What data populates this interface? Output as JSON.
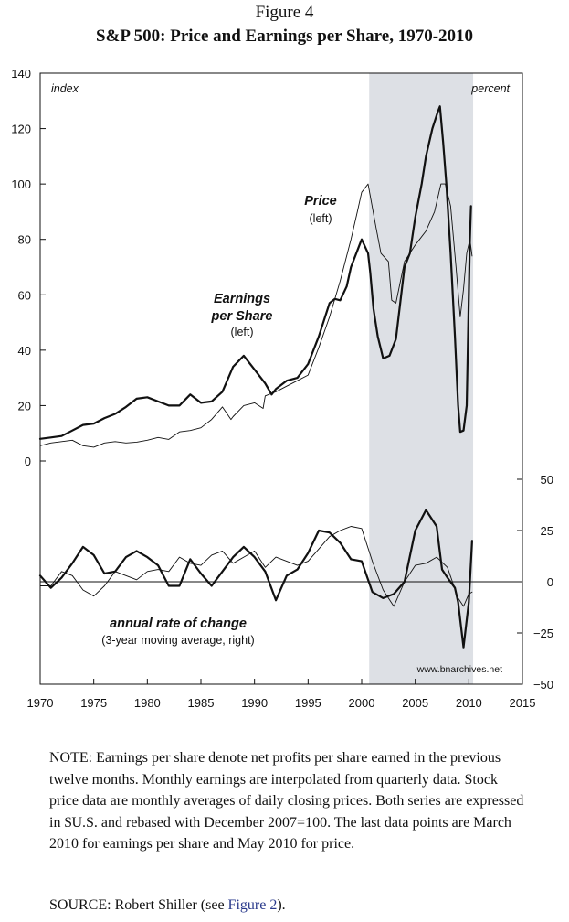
{
  "figure": {
    "title": "Figure 4",
    "subtitle": "S&P 500: Price and Earnings per Share, 1970-2010"
  },
  "labels": {
    "left_unit": "index",
    "right_unit": "percent",
    "price_title": "Price",
    "price_sub": "(left)",
    "eps_title_1": "Earnings",
    "eps_title_2": "per Share",
    "eps_sub": "(left)",
    "change_title": "annual rate of change",
    "change_sub": "(3-year moving average, right)",
    "watermark": "www.bnarchives.net"
  },
  "note": "NOTE: Earnings per share denote net profits per share earned in the previous twelve months. Monthly earnings are interpolated from quarterly data. Stock price data are monthly averages of daily closing prices. Both series are expressed in $U.S. and rebased with December 2007=100. The last data points are March 2010 for earnings per share and May 2010 for price.",
  "source": {
    "prefix": "SOURCE: Robert Shiller (see ",
    "ref": "Figure 2",
    "suffix": ")."
  },
  "colors": {
    "shade": "#dde0e5",
    "line": "#111111",
    "ref_link": "#2a3a8c"
  },
  "chart_data": {
    "type": "line",
    "x_range": [
      1970,
      2015
    ],
    "x_ticks": [
      "1970",
      "1975",
      "1980",
      "1985",
      "1990",
      "1995",
      "2000",
      "2005",
      "2010",
      "2015"
    ],
    "left_axis": {
      "range": [
        0,
        140
      ],
      "ticks": [
        "0",
        "20",
        "40",
        "60",
        "80",
        "100",
        "120",
        "140"
      ]
    },
    "right_axis": {
      "range": [
        -50,
        50
      ],
      "ticks": [
        "−50",
        "−25",
        "0",
        "25",
        "50"
      ]
    },
    "shaded_period": [
      2000.7,
      2010.4
    ],
    "series": [
      {
        "name": "Price",
        "axis": "left",
        "style": "thin",
        "points": [
          [
            1970,
            5.5
          ],
          [
            1971,
            6.5
          ],
          [
            1972,
            7
          ],
          [
            1973,
            7.5
          ],
          [
            1974,
            5.5
          ],
          [
            1975,
            5
          ],
          [
            1976,
            6.5
          ],
          [
            1977,
            7
          ],
          [
            1978,
            6.5
          ],
          [
            1979,
            6.8
          ],
          [
            1980,
            7.5
          ],
          [
            1981,
            8.5
          ],
          [
            1982,
            7.8
          ],
          [
            1983,
            10.5
          ],
          [
            1984,
            11
          ],
          [
            1985,
            12
          ],
          [
            1986,
            15
          ],
          [
            1987,
            19.5
          ],
          [
            1987.8,
            15
          ],
          [
            1988,
            16
          ],
          [
            1989,
            20
          ],
          [
            1990,
            21
          ],
          [
            1990.8,
            19
          ],
          [
            1991,
            23.5
          ],
          [
            1992,
            25
          ],
          [
            1993,
            27
          ],
          [
            1994,
            29
          ],
          [
            1995,
            31
          ],
          [
            1996,
            41
          ],
          [
            1997,
            52
          ],
          [
            1998,
            65
          ],
          [
            1999,
            80
          ],
          [
            1999.6,
            90
          ],
          [
            2000,
            97
          ],
          [
            2000.6,
            100
          ],
          [
            2001.3,
            85
          ],
          [
            2001.8,
            75
          ],
          [
            2002.5,
            72
          ],
          [
            2002.8,
            58
          ],
          [
            2003.2,
            57
          ],
          [
            2004,
            72
          ],
          [
            2005,
            78
          ],
          [
            2006,
            83
          ],
          [
            2006.8,
            90
          ],
          [
            2007.4,
            100
          ],
          [
            2007.8,
            100
          ],
          [
            2008.3,
            92
          ],
          [
            2008.8,
            70
          ],
          [
            2009.2,
            52
          ],
          [
            2009.5,
            62
          ],
          [
            2009.8,
            75
          ],
          [
            2010.1,
            80
          ],
          [
            2010.3,
            74
          ]
        ]
      },
      {
        "name": "Earnings per Share",
        "axis": "left",
        "style": "thick",
        "points": [
          [
            1970,
            8
          ],
          [
            1971,
            8.5
          ],
          [
            1972,
            9
          ],
          [
            1973,
            11
          ],
          [
            1974,
            13
          ],
          [
            1975,
            13.5
          ],
          [
            1976,
            15.5
          ],
          [
            1977,
            17
          ],
          [
            1978,
            19.5
          ],
          [
            1979,
            22.5
          ],
          [
            1980,
            23
          ],
          [
            1981,
            21.5
          ],
          [
            1982,
            20
          ],
          [
            1983,
            20
          ],
          [
            1984,
            24
          ],
          [
            1985,
            21
          ],
          [
            1986,
            21.5
          ],
          [
            1987,
            25
          ],
          [
            1988,
            34
          ],
          [
            1989,
            38
          ],
          [
            1990,
            33
          ],
          [
            1991,
            28
          ],
          [
            1991.6,
            24
          ],
          [
            1992,
            26
          ],
          [
            1993,
            29
          ],
          [
            1994,
            30
          ],
          [
            1995,
            35
          ],
          [
            1996,
            45
          ],
          [
            1997,
            57
          ],
          [
            1997.5,
            58.5
          ],
          [
            1998,
            58
          ],
          [
            1998.6,
            63
          ],
          [
            1999,
            70
          ],
          [
            2000,
            80
          ],
          [
            2000.6,
            75
          ],
          [
            2000.8,
            68
          ],
          [
            2001.1,
            55
          ],
          [
            2001.5,
            45
          ],
          [
            2002,
            37
          ],
          [
            2002.6,
            38
          ],
          [
            2003.2,
            44
          ],
          [
            2004,
            70
          ],
          [
            2004.5,
            75
          ],
          [
            2005,
            88
          ],
          [
            2005.6,
            100
          ],
          [
            2006,
            110
          ],
          [
            2006.6,
            120
          ],
          [
            2007.1,
            126
          ],
          [
            2007.3,
            128
          ],
          [
            2007.6,
            115
          ],
          [
            2007.9,
            100
          ],
          [
            2008.3,
            75
          ],
          [
            2008.7,
            45
          ],
          [
            2009,
            20
          ],
          [
            2009.2,
            10.5
          ],
          [
            2009.5,
            11
          ],
          [
            2009.8,
            20
          ],
          [
            2010.1,
            80
          ],
          [
            2010.2,
            92
          ]
        ]
      },
      {
        "name": "Price annual rate of change",
        "axis": "right",
        "style": "thin",
        "points": [
          [
            1970,
            -2
          ],
          [
            1971,
            -2
          ],
          [
            1972,
            5
          ],
          [
            1973,
            3
          ],
          [
            1974,
            -4
          ],
          [
            1975,
            -7
          ],
          [
            1976,
            -2
          ],
          [
            1977,
            5
          ],
          [
            1978,
            3
          ],
          [
            1979,
            1
          ],
          [
            1980,
            5
          ],
          [
            1981,
            6
          ],
          [
            1982,
            5
          ],
          [
            1983,
            12
          ],
          [
            1984,
            9
          ],
          [
            1985,
            8
          ],
          [
            1986,
            13
          ],
          [
            1987,
            15
          ],
          [
            1988,
            9
          ],
          [
            1989,
            12
          ],
          [
            1990,
            15
          ],
          [
            1991,
            7
          ],
          [
            1992,
            12
          ],
          [
            1993,
            10
          ],
          [
            1994,
            8
          ],
          [
            1995,
            10
          ],
          [
            1996,
            16
          ],
          [
            1997,
            22
          ],
          [
            1998,
            25
          ],
          [
            1999,
            27
          ],
          [
            2000,
            26
          ],
          [
            2001,
            10
          ],
          [
            2002,
            -4
          ],
          [
            2003,
            -12
          ],
          [
            2004,
            0
          ],
          [
            2005,
            8
          ],
          [
            2006,
            9
          ],
          [
            2007,
            12
          ],
          [
            2008,
            7
          ],
          [
            2009,
            -8
          ],
          [
            2009.5,
            -12
          ],
          [
            2010,
            -6
          ],
          [
            2010.3,
            -5
          ]
        ]
      },
      {
        "name": "Earnings per Share annual rate of change",
        "axis": "right",
        "style": "thick",
        "points": [
          [
            1970,
            3
          ],
          [
            1971,
            -3
          ],
          [
            1972,
            2
          ],
          [
            1973,
            9
          ],
          [
            1974,
            17
          ],
          [
            1975,
            13
          ],
          [
            1976,
            4
          ],
          [
            1977,
            5
          ],
          [
            1978,
            12
          ],
          [
            1979,
            15
          ],
          [
            1980,
            12
          ],
          [
            1981,
            8
          ],
          [
            1982,
            -2
          ],
          [
            1983,
            -2
          ],
          [
            1984,
            11
          ],
          [
            1985,
            4
          ],
          [
            1986,
            -2
          ],
          [
            1987,
            5
          ],
          [
            1988,
            12
          ],
          [
            1989,
            17
          ],
          [
            1990,
            12
          ],
          [
            1991,
            5
          ],
          [
            1992,
            -9
          ],
          [
            1993,
            3
          ],
          [
            1994,
            6
          ],
          [
            1995,
            14
          ],
          [
            1996,
            25
          ],
          [
            1997,
            24
          ],
          [
            1998,
            19
          ],
          [
            1999,
            11
          ],
          [
            2000,
            10
          ],
          [
            2001,
            -5
          ],
          [
            2002,
            -8
          ],
          [
            2003,
            -6
          ],
          [
            2004,
            0
          ],
          [
            2005,
            25
          ],
          [
            2006,
            35
          ],
          [
            2007,
            27
          ],
          [
            2007.5,
            6
          ],
          [
            2008,
            2
          ],
          [
            2008.7,
            -3
          ],
          [
            2009,
            -10
          ],
          [
            2009.5,
            -32
          ],
          [
            2010,
            -10
          ],
          [
            2010.3,
            20
          ]
        ]
      }
    ]
  }
}
